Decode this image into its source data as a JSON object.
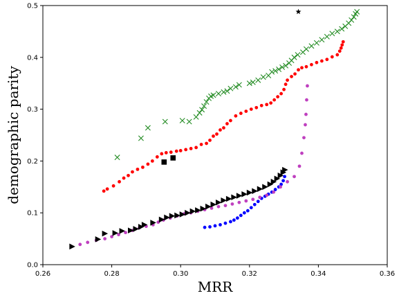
{
  "chart_data": {
    "type": "scatter",
    "xlabel": "MRR",
    "ylabel": "demographic parity",
    "xlim": [
      0.26,
      0.36
    ],
    "ylim": [
      0.0,
      0.5
    ],
    "xticks": [
      "0.26",
      "0.28",
      "0.30",
      "0.32",
      "0.34",
      "0.36"
    ],
    "yticks": [
      "0.0",
      "0.1",
      "0.2",
      "0.3",
      "0.4",
      "0.5"
    ],
    "grid": false,
    "series": [
      {
        "marker": "x",
        "color": "#228b22",
        "points": [
          [
            0.2816,
            0.207
          ],
          [
            0.2885,
            0.244
          ],
          [
            0.2905,
            0.264
          ],
          [
            0.2955,
            0.276
          ],
          [
            0.3005,
            0.278
          ],
          [
            0.3025,
            0.276
          ],
          [
            0.3045,
            0.285
          ],
          [
            0.3055,
            0.293
          ],
          [
            0.3062,
            0.299
          ],
          [
            0.3068,
            0.306
          ],
          [
            0.3075,
            0.314
          ],
          [
            0.3082,
            0.321
          ],
          [
            0.3088,
            0.325
          ],
          [
            0.3095,
            0.327
          ],
          [
            0.311,
            0.33
          ],
          [
            0.3125,
            0.333
          ],
          [
            0.3135,
            0.335
          ],
          [
            0.3145,
            0.34
          ],
          [
            0.316,
            0.343
          ],
          [
            0.317,
            0.347
          ],
          [
            0.32,
            0.35
          ],
          [
            0.321,
            0.352
          ],
          [
            0.3225,
            0.356
          ],
          [
            0.324,
            0.362
          ],
          [
            0.3255,
            0.365
          ],
          [
            0.3265,
            0.372
          ],
          [
            0.3275,
            0.374
          ],
          [
            0.3285,
            0.377
          ],
          [
            0.3295,
            0.381
          ],
          [
            0.3305,
            0.384
          ],
          [
            0.3315,
            0.389
          ],
          [
            0.3322,
            0.394
          ],
          [
            0.333,
            0.4
          ],
          [
            0.334,
            0.405
          ],
          [
            0.3355,
            0.41
          ],
          [
            0.3365,
            0.416
          ],
          [
            0.338,
            0.422
          ],
          [
            0.3395,
            0.428
          ],
          [
            0.341,
            0.434
          ],
          [
            0.3425,
            0.44
          ],
          [
            0.344,
            0.446
          ],
          [
            0.3455,
            0.45
          ],
          [
            0.3468,
            0.455
          ],
          [
            0.3478,
            0.46
          ],
          [
            0.3488,
            0.466
          ],
          [
            0.3496,
            0.472
          ],
          [
            0.3503,
            0.478
          ],
          [
            0.3508,
            0.484
          ],
          [
            0.3512,
            0.488
          ]
        ]
      },
      {
        "marker": "dot",
        "color": "#ff0000",
        "points": [
          [
            0.2777,
            0.142
          ],
          [
            0.2787,
            0.146
          ],
          [
            0.2805,
            0.152
          ],
          [
            0.2822,
            0.16
          ],
          [
            0.2835,
            0.167
          ],
          [
            0.2848,
            0.172
          ],
          [
            0.286,
            0.179
          ],
          [
            0.2875,
            0.184
          ],
          [
            0.289,
            0.188
          ],
          [
            0.2905,
            0.194
          ],
          [
            0.2918,
            0.2
          ],
          [
            0.2932,
            0.208
          ],
          [
            0.2945,
            0.214
          ],
          [
            0.2958,
            0.216
          ],
          [
            0.2972,
            0.217
          ],
          [
            0.2988,
            0.219
          ],
          [
            0.3,
            0.22
          ],
          [
            0.3015,
            0.222
          ],
          [
            0.303,
            0.224
          ],
          [
            0.3045,
            0.226
          ],
          [
            0.306,
            0.232
          ],
          [
            0.3075,
            0.234
          ],
          [
            0.3085,
            0.24
          ],
          [
            0.3095,
            0.248
          ],
          [
            0.3105,
            0.252
          ],
          [
            0.3115,
            0.26
          ],
          [
            0.3125,
            0.264
          ],
          [
            0.3135,
            0.272
          ],
          [
            0.3145,
            0.278
          ],
          [
            0.316,
            0.287
          ],
          [
            0.3175,
            0.292
          ],
          [
            0.319,
            0.296
          ],
          [
            0.3205,
            0.3
          ],
          [
            0.322,
            0.303
          ],
          [
            0.3235,
            0.307
          ],
          [
            0.325,
            0.309
          ],
          [
            0.3262,
            0.312
          ],
          [
            0.3272,
            0.318
          ],
          [
            0.3282,
            0.324
          ],
          [
            0.3292,
            0.33
          ],
          [
            0.33,
            0.338
          ],
          [
            0.3305,
            0.348
          ],
          [
            0.331,
            0.356
          ],
          [
            0.3322,
            0.363
          ],
          [
            0.3332,
            0.368
          ],
          [
            0.3342,
            0.376
          ],
          [
            0.3352,
            0.38
          ],
          [
            0.3365,
            0.382
          ],
          [
            0.338,
            0.386
          ],
          [
            0.3395,
            0.39
          ],
          [
            0.341,
            0.393
          ],
          [
            0.3425,
            0.396
          ],
          [
            0.344,
            0.401
          ],
          [
            0.3455,
            0.405
          ],
          [
            0.3462,
            0.412
          ],
          [
            0.3466,
            0.418
          ],
          [
            0.3469,
            0.424
          ],
          [
            0.3472,
            0.43
          ]
        ]
      },
      {
        "marker": "dot",
        "color": "#0000ff",
        "points": [
          [
            0.307,
            0.072
          ],
          [
            0.3085,
            0.073
          ],
          [
            0.31,
            0.075
          ],
          [
            0.3115,
            0.077
          ],
          [
            0.313,
            0.08
          ],
          [
            0.3145,
            0.083
          ],
          [
            0.3155,
            0.086
          ],
          [
            0.3165,
            0.09
          ],
          [
            0.3175,
            0.095
          ],
          [
            0.3185,
            0.1
          ],
          [
            0.3195,
            0.104
          ],
          [
            0.3205,
            0.11
          ],
          [
            0.3215,
            0.116
          ],
          [
            0.3225,
            0.122
          ],
          [
            0.3235,
            0.128
          ],
          [
            0.3245,
            0.132
          ],
          [
            0.3255,
            0.136
          ],
          [
            0.3265,
            0.14
          ],
          [
            0.3275,
            0.145
          ],
          [
            0.3285,
            0.15
          ],
          [
            0.3292,
            0.155
          ],
          [
            0.3298,
            0.162
          ],
          [
            0.3302,
            0.17
          ]
        ]
      },
      {
        "marker": "dot",
        "color": "#bf40bf",
        "points": [
          [
            0.2708,
            0.039
          ],
          [
            0.273,
            0.043
          ],
          [
            0.2755,
            0.047
          ],
          [
            0.278,
            0.05
          ],
          [
            0.28,
            0.054
          ],
          [
            0.282,
            0.058
          ],
          [
            0.284,
            0.062
          ],
          [
            0.286,
            0.066
          ],
          [
            0.288,
            0.071
          ],
          [
            0.29,
            0.074
          ],
          [
            0.292,
            0.077
          ],
          [
            0.2935,
            0.082
          ],
          [
            0.295,
            0.086
          ],
          [
            0.297,
            0.09
          ],
          [
            0.299,
            0.094
          ],
          [
            0.301,
            0.098
          ],
          [
            0.303,
            0.1
          ],
          [
            0.305,
            0.103
          ],
          [
            0.307,
            0.106
          ],
          [
            0.309,
            0.109
          ],
          [
            0.311,
            0.112
          ],
          [
            0.313,
            0.114
          ],
          [
            0.315,
            0.117
          ],
          [
            0.317,
            0.12
          ],
          [
            0.319,
            0.123
          ],
          [
            0.321,
            0.126
          ],
          [
            0.323,
            0.13
          ],
          [
            0.325,
            0.134
          ],
          [
            0.327,
            0.14
          ],
          [
            0.329,
            0.15
          ],
          [
            0.331,
            0.16
          ],
          [
            0.333,
            0.17
          ],
          [
            0.3345,
            0.19
          ],
          [
            0.3352,
            0.215
          ],
          [
            0.3358,
            0.245
          ],
          [
            0.3362,
            0.27
          ],
          [
            0.3364,
            0.29
          ],
          [
            0.3366,
            0.318
          ],
          [
            0.3368,
            0.345
          ]
        ]
      },
      {
        "marker": "triangle-right",
        "color": "#000000",
        "points": [
          [
            0.2685,
            0.035
          ],
          [
            0.276,
            0.049
          ],
          [
            0.278,
            0.06
          ],
          [
            0.281,
            0.061
          ],
          [
            0.283,
            0.065
          ],
          [
            0.2855,
            0.066
          ],
          [
            0.287,
            0.069
          ],
          [
            0.2885,
            0.073
          ],
          [
            0.2895,
            0.077
          ],
          [
            0.292,
            0.081
          ],
          [
            0.2945,
            0.087
          ],
          [
            0.296,
            0.091
          ],
          [
            0.2975,
            0.094
          ],
          [
            0.299,
            0.095
          ],
          [
            0.3005,
            0.097
          ],
          [
            0.302,
            0.1
          ],
          [
            0.3035,
            0.103
          ],
          [
            0.305,
            0.105
          ],
          [
            0.3065,
            0.108
          ],
          [
            0.308,
            0.112
          ],
          [
            0.3095,
            0.116
          ],
          [
            0.311,
            0.12
          ],
          [
            0.3125,
            0.124
          ],
          [
            0.314,
            0.127
          ],
          [
            0.3155,
            0.13
          ],
          [
            0.317,
            0.133
          ],
          [
            0.3185,
            0.136
          ],
          [
            0.32,
            0.139
          ],
          [
            0.3215,
            0.142
          ],
          [
            0.323,
            0.146
          ],
          [
            0.3245,
            0.15
          ],
          [
            0.326,
            0.155
          ],
          [
            0.327,
            0.16
          ],
          [
            0.328,
            0.166
          ],
          [
            0.329,
            0.172
          ],
          [
            0.3298,
            0.178
          ],
          [
            0.3303,
            0.183
          ]
        ]
      },
      {
        "marker": "square",
        "color": "#000000",
        "points": [
          [
            0.2952,
            0.198
          ],
          [
            0.2978,
            0.206
          ]
        ]
      },
      {
        "marker": "star",
        "color": "#000000",
        "points": [
          [
            0.3342,
            0.488
          ]
        ]
      }
    ]
  }
}
